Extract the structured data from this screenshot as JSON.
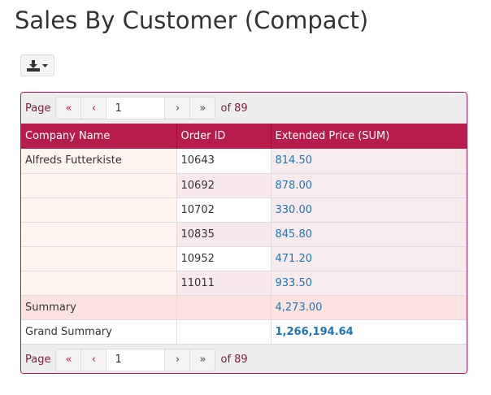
{
  "title": "Sales By Customer (Compact)",
  "toolbar": {
    "export_icon": "download-icon"
  },
  "pager": {
    "page_label": "Page",
    "first": "«",
    "prev": "‹",
    "next": "›",
    "last": "»",
    "current_page": "1",
    "of_label": "of 89"
  },
  "table": {
    "columns": [
      "Company Name",
      "Order ID",
      "Extended Price (SUM)"
    ],
    "rows": [
      [
        "Alfreds Futterkiste",
        "10643",
        "814.50"
      ],
      [
        "",
        "10692",
        "878.00"
      ],
      [
        "",
        "10702",
        "330.00"
      ],
      [
        "",
        "10835",
        "845.80"
      ],
      [
        "",
        "10952",
        "471.20"
      ],
      [
        "",
        "11011",
        "933.50"
      ]
    ],
    "summary": {
      "label": "Summary",
      "value": "4,273.00"
    },
    "grand_summary": {
      "label": "Grand Summary",
      "value": "1,266,194.64"
    }
  },
  "colors": {
    "accent": "#b81c4a",
    "link": "#1f74b8"
  }
}
